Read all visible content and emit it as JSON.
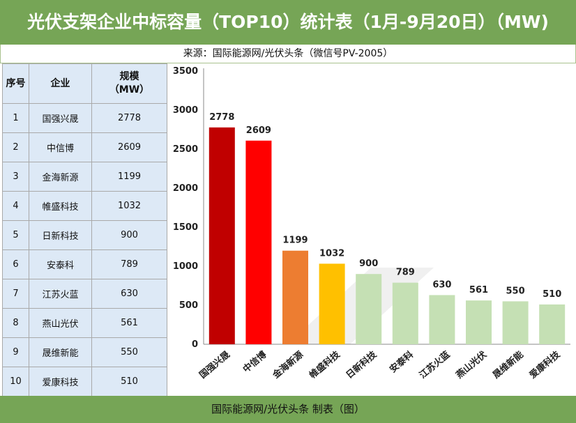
{
  "title": "光伏支架企业中标容量（TOP10）统计表（1月-9月20日）（MW)",
  "source": "来源：国际能源网/光伏头条（微信号PV-2005）",
  "footer": "国际能源网/光伏头条  制表（图）",
  "table": {
    "headers": {
      "rank": "序号",
      "company": "企业",
      "scale_line1": "规模",
      "scale_line2": "（MW）"
    },
    "rows": [
      {
        "rank": "1",
        "company": "国强兴晟",
        "value": "2778"
      },
      {
        "rank": "2",
        "company": "中信博",
        "value": "2609"
      },
      {
        "rank": "3",
        "company": "金海新源",
        "value": "1199"
      },
      {
        "rank": "4",
        "company": "帷盛科技",
        "value": "1032"
      },
      {
        "rank": "5",
        "company": "日新科技",
        "value": "900"
      },
      {
        "rank": "6",
        "company": "安泰科",
        "value": "789"
      },
      {
        "rank": "7",
        "company": "江苏火蓝",
        "value": "630"
      },
      {
        "rank": "8",
        "company": "燕山光伏",
        "value": "561"
      },
      {
        "rank": "9",
        "company": "晟维新能",
        "value": "550"
      },
      {
        "rank": "10",
        "company": "爱康科技",
        "value": "510"
      }
    ]
  },
  "chart_data": {
    "type": "bar",
    "categories": [
      "国强兴晟",
      "中信博",
      "金海新源",
      "帷盛科技",
      "日新科技",
      "安泰科",
      "江苏火蓝",
      "燕山光伏",
      "晟维新能",
      "爱康科技"
    ],
    "values": [
      2778,
      2609,
      1199,
      1032,
      900,
      789,
      630,
      561,
      550,
      510
    ],
    "colors": [
      "#c00000",
      "#ff0000",
      "#ed7d31",
      "#ffc000",
      "#c5e0b4",
      "#c5e0b4",
      "#c5e0b4",
      "#c5e0b4",
      "#c5e0b4",
      "#c5e0b4"
    ],
    "ylim": [
      0,
      3500
    ],
    "yticks": [
      0,
      500,
      1000,
      1500,
      2000,
      2500,
      3000,
      3500
    ],
    "grid": false,
    "legend": "none"
  }
}
